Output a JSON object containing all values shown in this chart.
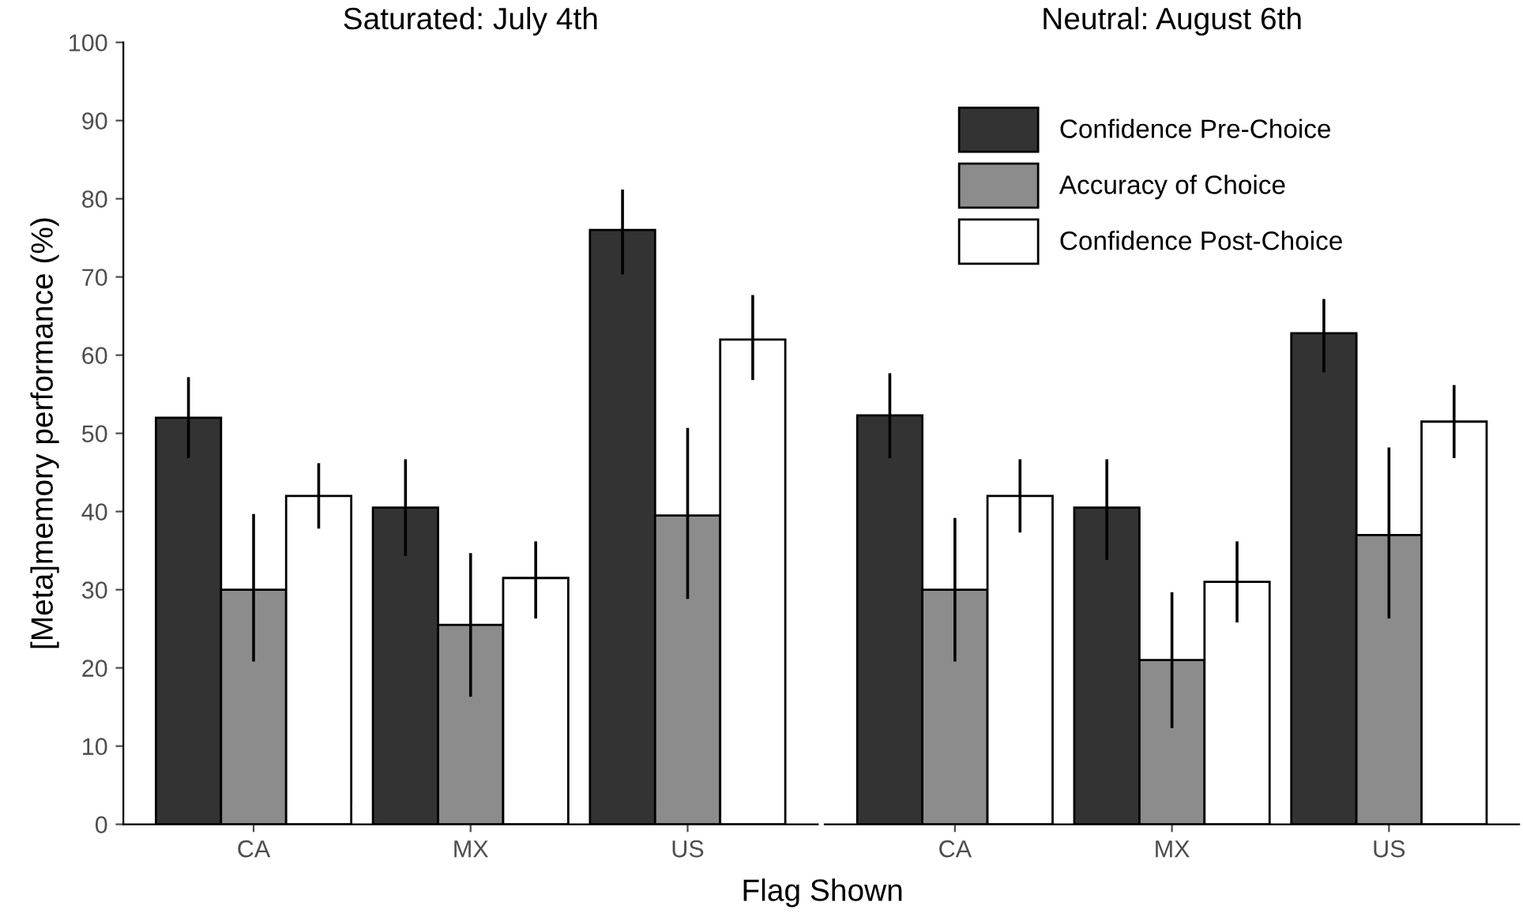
{
  "chart_data": [
    {
      "type": "bar",
      "title": "Saturated: July 4th",
      "xlabel": "Flag Shown",
      "ylabel": "[Meta]memory performance (%)",
      "categories": [
        "CA",
        "MX",
        "US"
      ],
      "ylim": [
        0,
        100
      ],
      "yticks": [
        0,
        10,
        20,
        30,
        40,
        50,
        60,
        70,
        80,
        90,
        100
      ],
      "grid": false,
      "legend": false,
      "series": [
        {
          "color": "#333333",
          "values": [
            52,
            40.5,
            76
          ],
          "errors": [
            [
              47,
              57
            ],
            [
              34.5,
              46.5
            ],
            [
              70.5,
              81
            ]
          ]
        },
        {
          "color": "#8c8c8c",
          "values": [
            30,
            25.5,
            39.5
          ],
          "errors": [
            [
              21,
              39.5
            ],
            [
              16.5,
              34.5
            ],
            [
              29,
              50.5
            ]
          ]
        },
        {
          "color": "#ffffff",
          "values": [
            42,
            31.5,
            62
          ],
          "errors": [
            [
              38,
              46
            ],
            [
              26.5,
              36
            ],
            [
              57,
              67.5
            ]
          ]
        }
      ]
    },
    {
      "type": "bar",
      "title": "Neutral: August 6th",
      "categories": [
        "CA",
        "MX",
        "US"
      ],
      "ylim": [
        0,
        100
      ],
      "yticks": [
        0,
        10,
        20,
        30,
        40,
        50,
        60,
        70,
        80,
        90,
        100
      ],
      "tick_labels": "x",
      "grid": false,
      "legend": "top",
      "series": [
        {
          "name": "Confidence Pre-Choice",
          "color": "#333333",
          "values": [
            52.3,
            40.5,
            62.8
          ],
          "errors": [
            [
              47,
              57.5
            ],
            [
              34,
              46.5
            ],
            [
              58,
              67
            ]
          ]
        },
        {
          "name": "Accuracy of Choice",
          "color": "#8c8c8c",
          "values": [
            30,
            21,
            37
          ],
          "errors": [
            [
              21,
              39
            ],
            [
              12.5,
              29.5
            ],
            [
              26.5,
              48
            ]
          ]
        },
        {
          "name": "Confidence Post-Choice",
          "color": "#ffffff",
          "values": [
            42,
            31,
            51.5
          ],
          "errors": [
            [
              37.5,
              46.5
            ],
            [
              26,
              36
            ],
            [
              47,
              56
            ]
          ]
        }
      ]
    }
  ]
}
